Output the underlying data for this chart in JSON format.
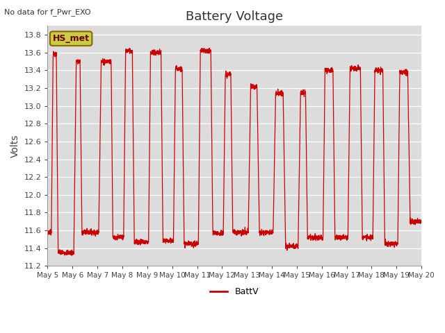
{
  "title": "Battery Voltage",
  "subtitle": "No data for f_Pwr_EXO",
  "ylabel": "Volts",
  "legend_label": "BattV",
  "line_color": "#cc0000",
  "background_color": "#dcdcdc",
  "ylim": [
    11.2,
    13.9
  ],
  "yticks": [
    11.2,
    11.4,
    11.6,
    11.8,
    12.0,
    12.2,
    12.4,
    12.6,
    12.8,
    13.0,
    13.2,
    13.4,
    13.6,
    13.8
  ],
  "xtick_labels": [
    "May 5",
    "May 6",
    "May 7",
    "May 8",
    "May 9",
    "May 10",
    "May 11",
    "May 12",
    "May 13",
    "May 14",
    "May 15",
    "May 16",
    "May 17",
    "May 18",
    "May 19",
    "May 20"
  ],
  "hs_met_text": "HS_met",
  "annotation_fg": "#660000",
  "annotation_bg": "#cccc44",
  "annotation_edge": "#886600"
}
